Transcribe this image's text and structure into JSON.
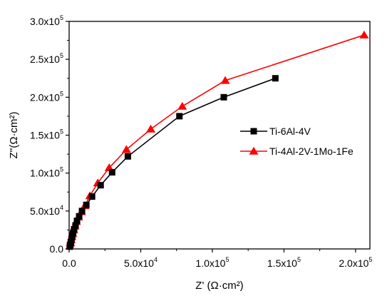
{
  "chart_data": {
    "type": "line",
    "title": "",
    "xlabel": "Z' (Ω·cm²)",
    "ylabel": "Z''(Ω·cm²)",
    "xlim": [
      0,
      210000
    ],
    "ylim": [
      0,
      300000
    ],
    "x_ticks": [
      {
        "value": 0,
        "mantissa": "0.0",
        "exponent": ""
      },
      {
        "value": 50000,
        "mantissa": "5.0x10",
        "exponent": "4"
      },
      {
        "value": 100000,
        "mantissa": "1.0x10",
        "exponent": "5"
      },
      {
        "value": 150000,
        "mantissa": "1.5x10",
        "exponent": "5"
      },
      {
        "value": 200000,
        "mantissa": "2.0x10",
        "exponent": "5"
      }
    ],
    "y_ticks": [
      {
        "value": 0,
        "mantissa": "0.0",
        "exponent": ""
      },
      {
        "value": 50000,
        "mantissa": "5.0x10",
        "exponent": "4"
      },
      {
        "value": 100000,
        "mantissa": "1.0x10",
        "exponent": "5"
      },
      {
        "value": 150000,
        "mantissa": "1.5x10",
        "exponent": "5"
      },
      {
        "value": 200000,
        "mantissa": "2.0x10",
        "exponent": "5"
      },
      {
        "value": 250000,
        "mantissa": "2.5x10",
        "exponent": "5"
      },
      {
        "value": 300000,
        "mantissa": "3.0x10",
        "exponent": "5"
      }
    ],
    "grid": false,
    "legend_position": "right",
    "series": [
      {
        "name": "Ti-6Al-4V",
        "color": "#000000",
        "marker": "square",
        "x": [
          500,
          900,
          1300,
          1700,
          2200,
          2800,
          3500,
          4500,
          5500,
          7000,
          9000,
          12000,
          16000,
          22000,
          30000,
          41000,
          77000,
          108000,
          144000
        ],
        "y": [
          3000,
          6000,
          9000,
          13000,
          17000,
          21000,
          26000,
          31000,
          37000,
          43000,
          50000,
          58000,
          69000,
          84000,
          101000,
          122000,
          175000,
          200000,
          225000
        ]
      },
      {
        "name": "Ti-4Al-2V-1Mo-1Fe",
        "color": "#ff0000",
        "marker": "triangle",
        "x": [
          500,
          900,
          1300,
          1800,
          2400,
          3100,
          4000,
          5000,
          6500,
          8500,
          11000,
          14500,
          20000,
          28000,
          40000,
          57000,
          79000,
          109000,
          206000
        ],
        "y": [
          4000,
          8000,
          12000,
          16000,
          20000,
          25000,
          30000,
          36000,
          42000,
          49000,
          57000,
          70000,
          87000,
          107000,
          131000,
          158000,
          188000,
          222000,
          282000
        ]
      }
    ]
  }
}
